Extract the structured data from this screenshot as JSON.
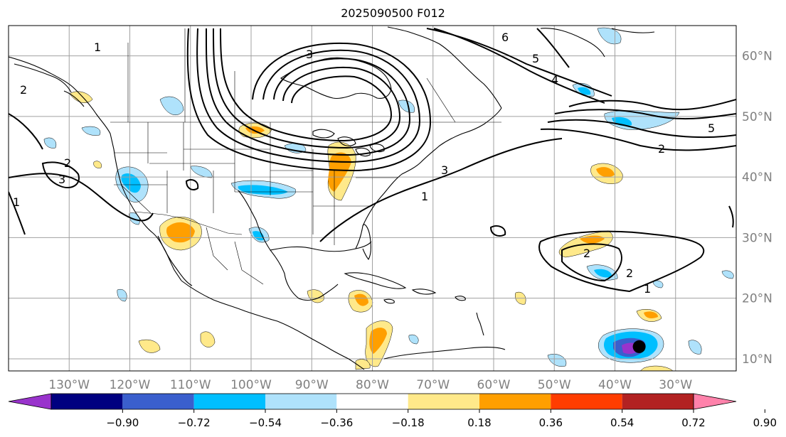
{
  "title": "2025090500 F012",
  "map": {
    "lon_range": [
      -140,
      -20
    ],
    "lat_range": [
      8,
      65
    ],
    "lon_ticks": [
      {
        "lon": -130,
        "label": "130°W"
      },
      {
        "lon": -120,
        "label": "120°W"
      },
      {
        "lon": -110,
        "label": "110°W"
      },
      {
        "lon": -100,
        "label": "100°W"
      },
      {
        "lon": -90,
        "label": "90°W"
      },
      {
        "lon": -80,
        "label": "80°W"
      },
      {
        "lon": -70,
        "label": "70°W"
      },
      {
        "lon": -60,
        "label": "60°W"
      },
      {
        "lon": -50,
        "label": "50°W"
      },
      {
        "lon": -40,
        "label": "40°W"
      },
      {
        "lon": -30,
        "label": "30°W"
      }
    ],
    "lat_ticks": [
      {
        "lat": 60,
        "label": "60°N"
      },
      {
        "lat": 50,
        "label": "50°N"
      },
      {
        "lat": 40,
        "label": "40°N"
      },
      {
        "lat": 30,
        "label": "30°N"
      },
      {
        "lat": 20,
        "label": "20°N"
      },
      {
        "lat": 10,
        "label": "10°N"
      }
    ],
    "tick_label_color": "#808080",
    "grid_color": "#a0a0a0"
  },
  "colorbar": {
    "colors": [
      "#9933cc",
      "#000080",
      "#3a5fcd",
      "#00bfff",
      "#afe2fb",
      "#ffffff",
      "#ffe98a",
      "#ff9f00",
      "#ff3d00",
      "#b22222",
      "#ff82ab"
    ],
    "tick_labels": [
      "−0.90",
      "−0.72",
      "−0.54",
      "−0.36",
      "−0.18",
      "0.18",
      "0.36",
      "0.54",
      "0.72",
      "0.90"
    ]
  },
  "contour_labels": [
    "1",
    "2",
    "3",
    "4",
    "5",
    "6"
  ],
  "storm_marker": {
    "lon": -36,
    "lat": 12
  }
}
